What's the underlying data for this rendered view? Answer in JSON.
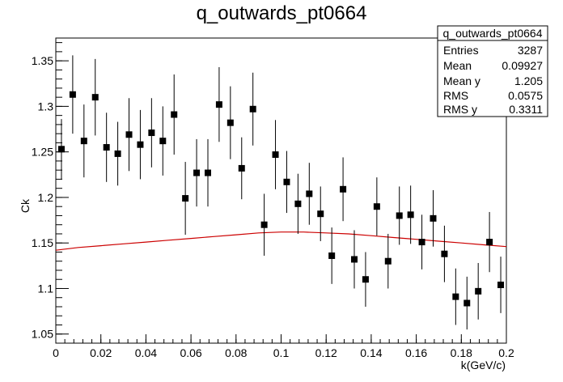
{
  "chart_data": {
    "type": "scatter",
    "title": "q_outwards_pt0664",
    "xlabel": "k(GeV/c)",
    "ylabel": "Ck",
    "xlim": [
      0,
      0.2
    ],
    "ylim": [
      1.04,
      1.375
    ],
    "x_ticks": [
      0,
      0.02,
      0.04,
      0.06,
      0.08,
      0.1,
      0.12,
      0.14,
      0.16,
      0.18,
      0.2
    ],
    "x_tick_labels": [
      "0",
      "0.02",
      "0.04",
      "0.06",
      "0.08",
      "0.1",
      "0.12",
      "0.14",
      "0.16",
      "0.18",
      "0.2"
    ],
    "y_ticks": [
      1.05,
      1.1,
      1.15,
      1.2,
      1.25,
      1.3,
      1.35
    ],
    "y_tick_labels": [
      "1.05",
      "1.1",
      "1.15",
      "1.2",
      "1.25",
      "1.3",
      "1.35"
    ],
    "grid": false,
    "series": [
      {
        "marker": "square",
        "color": "#000000",
        "points": [
          {
            "x": 0.0025,
            "y": 1.253,
            "err": 0.033
          },
          {
            "x": 0.0075,
            "y": 1.313,
            "err": 0.043
          },
          {
            "x": 0.0125,
            "y": 1.262,
            "err": 0.04
          },
          {
            "x": 0.0175,
            "y": 1.31,
            "err": 0.042
          },
          {
            "x": 0.0225,
            "y": 1.255,
            "err": 0.038
          },
          {
            "x": 0.0275,
            "y": 1.248,
            "err": 0.035
          },
          {
            "x": 0.0325,
            "y": 1.269,
            "err": 0.04
          },
          {
            "x": 0.0375,
            "y": 1.258,
            "err": 0.038
          },
          {
            "x": 0.0425,
            "y": 1.271,
            "err": 0.038
          },
          {
            "x": 0.0475,
            "y": 1.262,
            "err": 0.038
          },
          {
            "x": 0.0525,
            "y": 1.291,
            "err": 0.044
          },
          {
            "x": 0.0575,
            "y": 1.199,
            "err": 0.04
          },
          {
            "x": 0.0625,
            "y": 1.227,
            "err": 0.037
          },
          {
            "x": 0.0675,
            "y": 1.227,
            "err": 0.037
          },
          {
            "x": 0.0725,
            "y": 1.302,
            "err": 0.041
          },
          {
            "x": 0.0775,
            "y": 1.282,
            "err": 0.04
          },
          {
            "x": 0.0825,
            "y": 1.232,
            "err": 0.034
          },
          {
            "x": 0.0875,
            "y": 1.297,
            "err": 0.04
          },
          {
            "x": 0.0925,
            "y": 1.17,
            "err": 0.034
          },
          {
            "x": 0.0975,
            "y": 1.247,
            "err": 0.038
          },
          {
            "x": 0.1025,
            "y": 1.217,
            "err": 0.034
          },
          {
            "x": 0.1075,
            "y": 1.193,
            "err": 0.033
          },
          {
            "x": 0.1125,
            "y": 1.204,
            "err": 0.034
          },
          {
            "x": 0.1175,
            "y": 1.182,
            "err": 0.03
          },
          {
            "x": 0.1225,
            "y": 1.136,
            "err": 0.031
          },
          {
            "x": 0.1275,
            "y": 1.209,
            "err": 0.035
          },
          {
            "x": 0.1325,
            "y": 1.132,
            "err": 0.032
          },
          {
            "x": 0.1375,
            "y": 1.11,
            "err": 0.03
          },
          {
            "x": 0.1425,
            "y": 1.19,
            "err": 0.032
          },
          {
            "x": 0.1475,
            "y": 1.13,
            "err": 0.03
          },
          {
            "x": 0.1525,
            "y": 1.18,
            "err": 0.032
          },
          {
            "x": 0.1575,
            "y": 1.181,
            "err": 0.032
          },
          {
            "x": 0.1625,
            "y": 1.151,
            "err": 0.03
          },
          {
            "x": 0.1675,
            "y": 1.177,
            "err": 0.031
          },
          {
            "x": 0.1725,
            "y": 1.138,
            "err": 0.031
          },
          {
            "x": 0.1775,
            "y": 1.091,
            "err": 0.031
          },
          {
            "x": 0.1825,
            "y": 1.084,
            "err": 0.029
          },
          {
            "x": 0.1875,
            "y": 1.097,
            "err": 0.031
          },
          {
            "x": 0.1925,
            "y": 1.151,
            "err": 0.033
          },
          {
            "x": 0.1975,
            "y": 1.104,
            "err": 0.031
          }
        ]
      },
      {
        "type": "line",
        "color": "#cc0000",
        "x": [
          0,
          0.01,
          0.02,
          0.03,
          0.04,
          0.05,
          0.06,
          0.07,
          0.08,
          0.09,
          0.1,
          0.11,
          0.12,
          0.13,
          0.14,
          0.15,
          0.16,
          0.17,
          0.18,
          0.19,
          0.2
        ],
        "y": [
          1.142,
          1.145,
          1.147,
          1.149,
          1.151,
          1.153,
          1.155,
          1.157,
          1.159,
          1.161,
          1.162,
          1.162,
          1.161,
          1.16,
          1.158,
          1.156,
          1.154,
          1.152,
          1.15,
          1.148,
          1.146
        ]
      }
    ],
    "stats_box": {
      "title": "q_outwards_pt0664",
      "rows": [
        {
          "label": "Entries",
          "value": "3287"
        },
        {
          "label": "Mean",
          "value": "0.09927"
        },
        {
          "label": "Mean y",
          "value": "1.205"
        },
        {
          "label": "RMS",
          "value": "0.0575"
        },
        {
          "label": "RMS y",
          "value": "0.3311"
        }
      ]
    }
  }
}
